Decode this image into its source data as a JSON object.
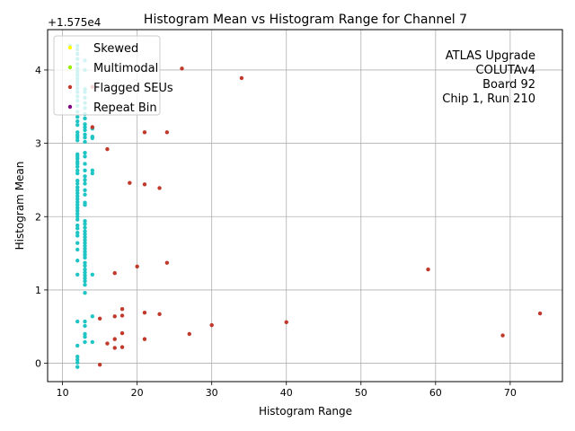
{
  "chart_data": {
    "type": "scatter",
    "title": "Histogram Mean vs Histogram Range for Channel 7",
    "xlabel": "Histogram Range",
    "ylabel": "Histogram Mean",
    "offset_label": "+1.575e4",
    "xlim": [
      8,
      77
    ],
    "ylim": [
      -0.25,
      4.55
    ],
    "xticks": [
      10,
      20,
      30,
      40,
      50,
      60,
      70
    ],
    "yticks": [
      0,
      1,
      2,
      3,
      4
    ],
    "grid": true,
    "legend_position": "top-left",
    "annotation": [
      "ATLAS Upgrade",
      "COLUTAv4",
      "Board 92",
      "Chip 1, Run 210"
    ],
    "series": [
      {
        "name": "Skewed",
        "color": "#ffff00",
        "points": []
      },
      {
        "name": "Multimodal",
        "color": "#99ee00",
        "points": []
      },
      {
        "name": "Flagged SEUs",
        "color": "#c0392b",
        "points": [
          [
            34,
            3.89
          ],
          [
            26,
            4.02
          ],
          [
            14,
            3.77
          ],
          [
            14,
            3.22
          ],
          [
            16,
            2.92
          ],
          [
            21,
            3.15
          ],
          [
            24,
            3.15
          ],
          [
            19,
            2.46
          ],
          [
            21,
            2.44
          ],
          [
            23,
            2.39
          ],
          [
            17,
            1.23
          ],
          [
            20,
            1.32
          ],
          [
            24,
            1.37
          ],
          [
            59,
            1.28
          ],
          [
            18,
            0.74
          ],
          [
            15,
            0.61
          ],
          [
            17,
            0.64
          ],
          [
            18,
            0.65
          ],
          [
            21,
            0.69
          ],
          [
            23,
            0.67
          ],
          [
            30,
            0.52
          ],
          [
            40,
            0.56
          ],
          [
            74,
            0.68
          ],
          [
            18,
            0.41
          ],
          [
            27,
            0.4
          ],
          [
            69,
            0.38
          ],
          [
            17,
            0.33
          ],
          [
            21,
            0.33
          ],
          [
            16,
            0.27
          ],
          [
            17,
            0.21
          ],
          [
            18,
            0.22
          ],
          [
            15,
            -0.02
          ]
        ]
      },
      {
        "name": "Repeat Bin",
        "color": "#800080",
        "points": []
      },
      {
        "name": "",
        "color": "#1fc4c4",
        "points": [
          [
            11,
            4.33
          ],
          [
            12,
            4.33
          ],
          [
            12,
            4.28
          ],
          [
            12,
            4.22
          ],
          [
            12,
            4.15
          ],
          [
            12,
            4.08
          ],
          [
            12,
            4.02
          ],
          [
            12,
            3.97
          ],
          [
            12,
            3.93
          ],
          [
            12,
            3.88
          ],
          [
            12,
            3.84
          ],
          [
            12,
            3.8
          ],
          [
            12,
            3.75
          ],
          [
            12,
            3.7
          ],
          [
            12,
            3.64
          ],
          [
            12,
            3.58
          ],
          [
            12,
            3.51
          ],
          [
            12,
            3.43
          ],
          [
            12,
            3.36
          ],
          [
            12,
            3.3
          ],
          [
            12,
            3.25
          ],
          [
            12,
            3.15
          ],
          [
            12,
            3.11
          ],
          [
            12,
            3.08
          ],
          [
            12,
            3.04
          ],
          [
            12,
            2.85
          ],
          [
            12,
            2.82
          ],
          [
            12,
            2.79
          ],
          [
            12,
            2.75
          ],
          [
            12,
            2.72
          ],
          [
            12,
            2.68
          ],
          [
            12,
            2.63
          ],
          [
            12,
            2.59
          ],
          [
            12,
            2.49
          ],
          [
            12,
            2.45
          ],
          [
            12,
            2.4
          ],
          [
            12,
            2.36
          ],
          [
            12,
            2.32
          ],
          [
            12,
            2.28
          ],
          [
            12,
            2.24
          ],
          [
            12,
            2.2
          ],
          [
            12,
            2.16
          ],
          [
            12,
            2.12
          ],
          [
            12,
            2.08
          ],
          [
            12,
            2.04
          ],
          [
            12,
            2.0
          ],
          [
            12,
            1.96
          ],
          [
            12,
            1.88
          ],
          [
            12,
            1.84
          ],
          [
            12,
            1.78
          ],
          [
            12,
            1.74
          ],
          [
            12,
            1.64
          ],
          [
            12,
            1.55
          ],
          [
            12,
            1.4
          ],
          [
            12,
            1.21
          ],
          [
            12,
            0.57
          ],
          [
            12,
            0.24
          ],
          [
            12,
            0.09
          ],
          [
            12,
            0.05
          ],
          [
            12,
            0.01
          ],
          [
            12,
            -0.05
          ],
          [
            13,
            4.13
          ],
          [
            13,
            4.0
          ],
          [
            13,
            3.74
          ],
          [
            13,
            3.7
          ],
          [
            13,
            3.62
          ],
          [
            13,
            3.55
          ],
          [
            13,
            3.48
          ],
          [
            13,
            3.4
          ],
          [
            13,
            3.34
          ],
          [
            13,
            3.26
          ],
          [
            13,
            3.22
          ],
          [
            13,
            3.18
          ],
          [
            13,
            3.12
          ],
          [
            13,
            3.08
          ],
          [
            13,
            3.02
          ],
          [
            13,
            2.87
          ],
          [
            13,
            2.82
          ],
          [
            13,
            2.72
          ],
          [
            13,
            2.63
          ],
          [
            13,
            2.55
          ],
          [
            13,
            2.5
          ],
          [
            13,
            2.45
          ],
          [
            13,
            2.36
          ],
          [
            13,
            2.3
          ],
          [
            13,
            2.19
          ],
          [
            13,
            2.16
          ],
          [
            13,
            1.94
          ],
          [
            13,
            1.9
          ],
          [
            13,
            1.85
          ],
          [
            13,
            1.8
          ],
          [
            13,
            1.76
          ],
          [
            13,
            1.72
          ],
          [
            13,
            1.68
          ],
          [
            13,
            1.64
          ],
          [
            13,
            1.6
          ],
          [
            13,
            1.56
          ],
          [
            13,
            1.52
          ],
          [
            13,
            1.48
          ],
          [
            13,
            1.44
          ],
          [
            13,
            1.37
          ],
          [
            13,
            1.33
          ],
          [
            13,
            1.28
          ],
          [
            13,
            1.24
          ],
          [
            13,
            1.2
          ],
          [
            13,
            1.16
          ],
          [
            13,
            1.12
          ],
          [
            13,
            1.07
          ],
          [
            13,
            0.96
          ],
          [
            13,
            0.57
          ],
          [
            13,
            0.51
          ],
          [
            13,
            0.4
          ],
          [
            13,
            0.36
          ],
          [
            13,
            0.29
          ],
          [
            14,
            3.2
          ],
          [
            14,
            3.09
          ],
          [
            14,
            3.07
          ],
          [
            14,
            2.63
          ],
          [
            14,
            2.59
          ],
          [
            14,
            1.21
          ],
          [
            14,
            0.64
          ],
          [
            14,
            0.29
          ]
        ]
      }
    ]
  }
}
